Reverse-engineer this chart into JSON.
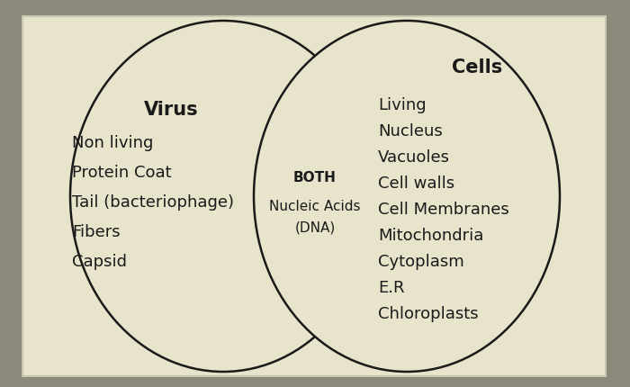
{
  "background_color": "#8b8a7a",
  "rect_color": "#e8e4cc",
  "rect_edge_color": "#d0cdb8",
  "ellipse_color": "#e8e4cc",
  "ellipse_edge_color": "#1a1a1a",
  "text_color": "#1a1a1a",
  "virus_title": "Virus",
  "cells_title": "Cells",
  "both_title": "BOTH",
  "virus_items": [
    "Non living",
    "Protein Coat",
    "Tail (bacteriophage)",
    "Fibers",
    "Capsid"
  ],
  "cells_items": [
    "Living",
    "Nucleus",
    "Vacuoles",
    "Cell walls",
    "Cell Membranes",
    "Mitochondria",
    "Cytoplasm",
    "E.R",
    "Chloroplasts"
  ],
  "both_items": [
    "Nucleic Acids",
    "(DNA)"
  ],
  "title_fontsize": 15,
  "item_fontsize": 13,
  "both_label_fontsize": 11,
  "both_item_fontsize": 11
}
